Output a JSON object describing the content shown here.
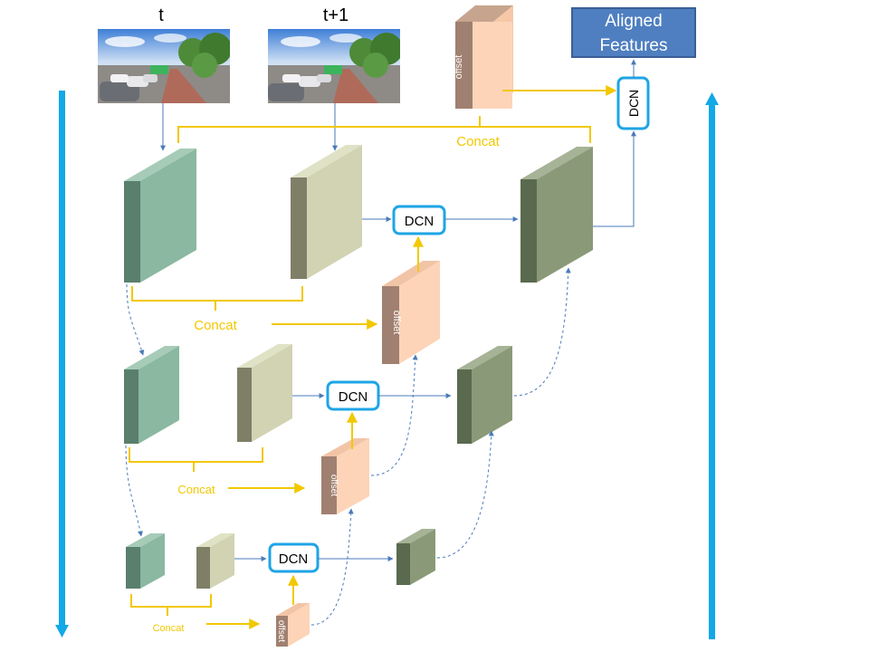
{
  "labels": {
    "frame_t": "t",
    "frame_t1": "t+1",
    "aligned_features": [
      "Aligned",
      "Features"
    ],
    "concat": "Concat",
    "dcn": "DCN",
    "offset": "offset"
  },
  "colors": {
    "feat_t_front": "#8ab8a0",
    "feat_t_side": "#5a7f6c",
    "feat_t1_front": "#d1d3b3",
    "feat_t1_side": "#7f7f68",
    "aligned_front": "#8a9a78",
    "aligned_side": "#5a6a4e",
    "offset_front": "#fdd4b8",
    "offset_side": "#a08070",
    "dcn_border": "#1ea5e6",
    "concat_brace": "#f2c800",
    "flow_arrow": "#4a7ab8",
    "pyramid_arrow": "#13a8e6",
    "output_box": "#4f7fc0",
    "output_border": "#3a5f96"
  },
  "icons": {
    "frame_image": "street-photo-icon"
  }
}
